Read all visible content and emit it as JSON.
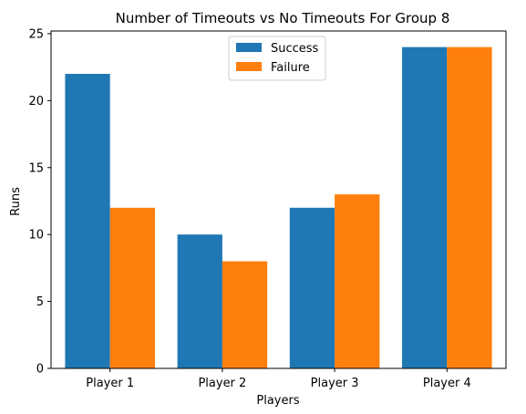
{
  "chart_data": {
    "type": "bar",
    "title": "Number of Timeouts vs No Timeouts For Group 8",
    "xlabel": "Players",
    "ylabel": "Runs",
    "categories": [
      "Player 1",
      "Player 2",
      "Player 3",
      "Player 4"
    ],
    "series": [
      {
        "name": "Success",
        "values": [
          22,
          10,
          12,
          24
        ],
        "color": "#1f77b4"
      },
      {
        "name": "Failure",
        "values": [
          12,
          8,
          13,
          24
        ],
        "color": "#ff7f0e"
      }
    ],
    "ylim": [
      0,
      25.2
    ],
    "yticks": [
      "0",
      "5",
      "10",
      "15",
      "20",
      "25"
    ],
    "grid": false,
    "legend_position": "top-center"
  }
}
